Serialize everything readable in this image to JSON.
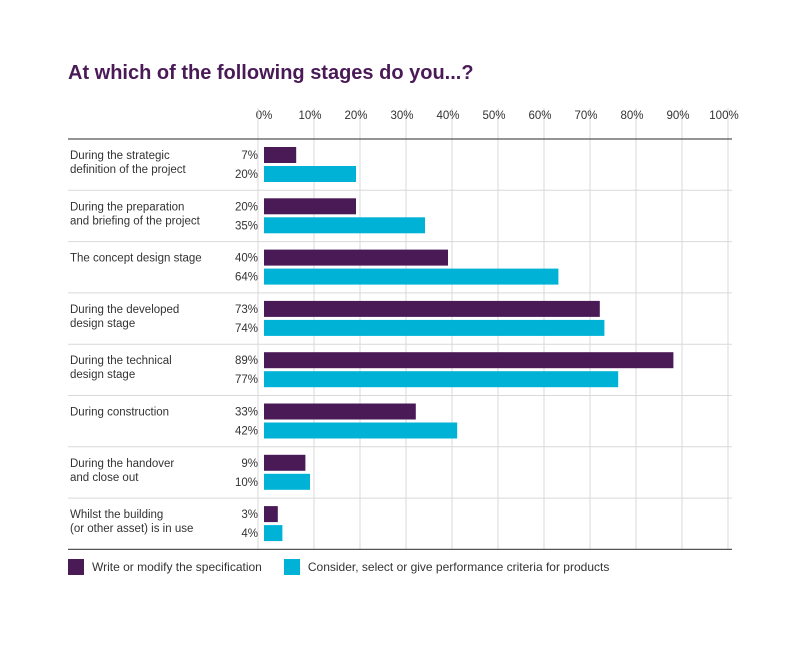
{
  "colors": {
    "series1": "#4a1a57",
    "series2": "#00b3d6",
    "grid": "#d9d9d9",
    "rule": "#555555"
  },
  "chart_data": {
    "type": "bar",
    "orientation": "horizontal",
    "title": "At which of the following stages do you...?",
    "xlabel": "",
    "ylabel": "",
    "xlim": [
      0,
      100
    ],
    "ticks": [
      "0%",
      "10%",
      "20%",
      "30%",
      "40%",
      "50%",
      "60%",
      "70%",
      "80%",
      "90%",
      "100%"
    ],
    "grid": true,
    "legend_position": "bottom-left",
    "categories": [
      [
        "During the strategic",
        "definition of the project"
      ],
      [
        "During the preparation",
        "and briefing of the project"
      ],
      [
        "The concept design stage"
      ],
      [
        "During the developed",
        "design stage"
      ],
      [
        "During the technical",
        "design stage"
      ],
      [
        "During construction"
      ],
      [
        "During the handover",
        "and close out"
      ],
      [
        "Whilst the building",
        "(or other asset) is in use"
      ]
    ],
    "series": [
      {
        "name": "Write or modify the specification",
        "values": [
          7,
          20,
          40,
          73,
          89,
          33,
          9,
          3
        ],
        "labels": [
          "7%",
          "20%",
          "40%",
          "73%",
          "89%",
          "33%",
          "9%",
          "3%"
        ]
      },
      {
        "name": "Consider, select or give performance criteria for products",
        "values": [
          20,
          35,
          64,
          74,
          77,
          42,
          10,
          4
        ],
        "labels": [
          "20%",
          "35%",
          "64%",
          "74%",
          "77%",
          "42%",
          "10%",
          "4%"
        ]
      }
    ]
  }
}
